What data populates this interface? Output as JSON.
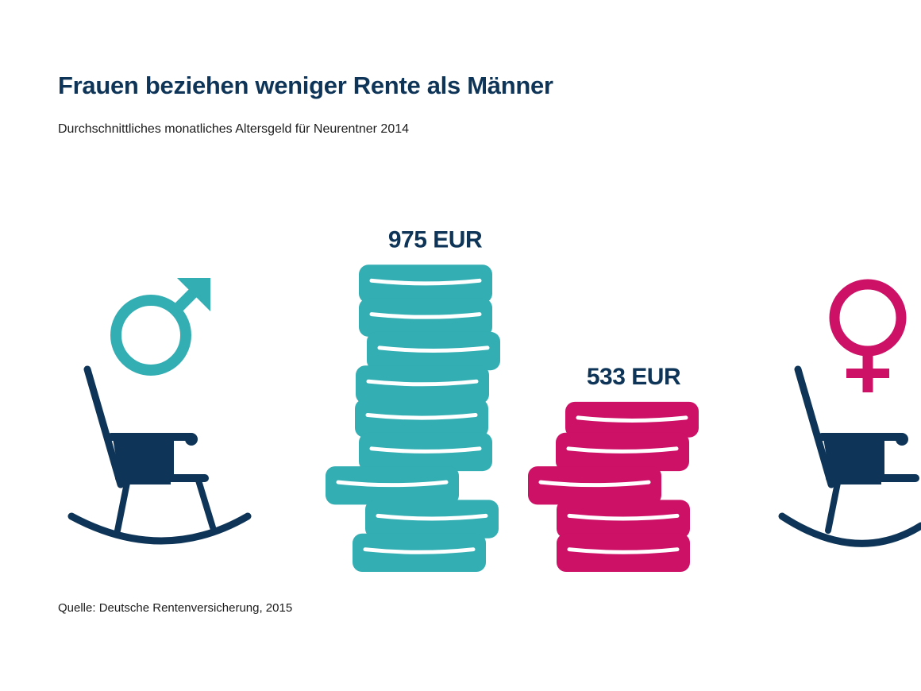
{
  "title": "Frauen beziehen weniger Rente als Männer",
  "subtitle": "Durchschnittliches monatliches Altersgeld für Neurentner 2014",
  "source": "Quelle: Deutsche Rentenversicherung, 2015",
  "icons": {
    "men": [
      "male-symbol-icon",
      "rocking-chair-icon"
    ],
    "women": [
      "female-symbol-icon",
      "rocking-chair-icon"
    ]
  },
  "colors": {
    "men": "#33aeb3",
    "women": "#cc1166",
    "chair": "#0e3557",
    "text": "#0e3557"
  },
  "chart_data": {
    "type": "bar",
    "categories": [
      "Männer",
      "Frauen"
    ],
    "values": [
      975,
      533
    ],
    "labels": [
      "975 EUR",
      "533 EUR"
    ],
    "unit": "EUR"
  }
}
